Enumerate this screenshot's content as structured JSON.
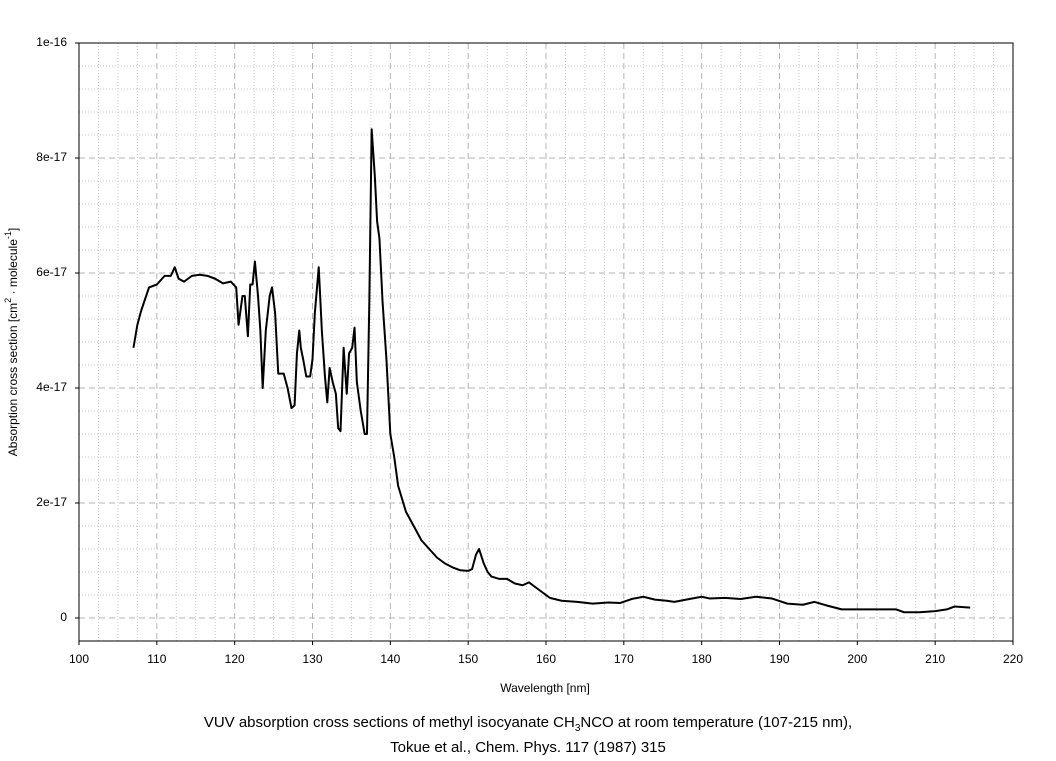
{
  "chart_data": {
    "type": "line",
    "title": [
      "VUV absorption cross sections of methyl isocyanate CH",
      "3",
      "NCO at room temperature (107-215 nm),"
    ],
    "subtitle": "Tokue et al., Chem. Phys. 117 (1987) 315",
    "xlabel": "Wavelength [nm]",
    "ylabel": [
      "Absorption cross section [cm",
      "2",
      " · molecule",
      "-1",
      "]"
    ],
    "xlim": [
      100,
      220
    ],
    "xticks": [
      100,
      110,
      120,
      130,
      140,
      150,
      160,
      170,
      180,
      190,
      200,
      210,
      220
    ],
    "ylim": [
      -4e-18,
      1e-16
    ],
    "yticks": [
      0,
      2e-17,
      4e-17,
      6e-17,
      8e-17,
      1e-16
    ],
    "grid": true,
    "color": "#000000",
    "x": [
      107,
      107.5,
      108,
      108.5,
      109,
      110,
      111,
      111.8,
      112.3,
      112.8,
      113.5,
      114.5,
      115.5,
      116.5,
      117.5,
      118.5,
      119.5,
      120.2,
      120.5,
      121,
      121.3,
      121.7,
      122,
      122.3,
      122.6,
      123,
      123.3,
      123.6,
      124,
      124.5,
      124.8,
      125.2,
      125.6,
      126.3,
      126.8,
      127.3,
      127.7,
      128,
      128.3,
      128.5,
      128.8,
      129.2,
      129.7,
      130,
      130.3,
      130.8,
      131.2,
      131.6,
      131.9,
      132.2,
      132.6,
      133,
      133.3,
      133.6,
      134,
      134.4,
      134.7,
      135.1,
      135.4,
      135.7,
      136.2,
      136.7,
      137,
      137.3,
      137.6,
      138,
      138.3,
      138.6,
      139,
      139.5,
      140,
      140.5,
      141,
      142,
      143,
      144,
      145,
      146,
      147,
      148,
      149,
      150,
      150.5,
      151,
      151.4,
      152,
      152.5,
      153,
      154,
      155,
      156,
      157,
      157.8,
      158.5,
      159.5,
      160.5,
      162,
      164,
      166,
      168,
      169.5,
      171,
      172.5,
      174,
      175.5,
      176.5,
      178,
      180,
      181,
      183,
      185,
      187,
      189,
      191,
      193,
      194.5,
      196,
      198,
      200,
      203,
      205,
      206,
      208,
      210,
      211.5,
      212.5,
      214.5
    ],
    "values": [
      4.7e-17,
      5.1e-17,
      5.35e-17,
      5.55e-17,
      5.75e-17,
      5.8e-17,
      5.95e-17,
      5.95e-17,
      6.1e-17,
      5.9e-17,
      5.85e-17,
      5.95e-17,
      5.97e-17,
      5.95e-17,
      5.9e-17,
      5.82e-17,
      5.85e-17,
      5.75e-17,
      5.1e-17,
      5.6e-17,
      5.6e-17,
      4.9e-17,
      5.8e-17,
      5.8e-17,
      6.2e-17,
      5.6e-17,
      5e-17,
      4e-17,
      5e-17,
      5.6e-17,
      5.75e-17,
      5.3e-17,
      4.25e-17,
      4.25e-17,
      4e-17,
      3.65e-17,
      3.7e-17,
      4.6e-17,
      5e-17,
      4.7e-17,
      4.5e-17,
      4.2e-17,
      4.2e-17,
      4.5e-17,
      5.3e-17,
      6.1e-17,
      5e-17,
      4.2e-17,
      3.75e-17,
      4.35e-17,
      4.1e-17,
      3.9e-17,
      3.3e-17,
      3.25e-17,
      4.7e-17,
      3.9e-17,
      4.6e-17,
      4.7e-17,
      5.05e-17,
      4.1e-17,
      3.6e-17,
      3.2e-17,
      3.2e-17,
      5.5e-17,
      8.5e-17,
      7.7e-17,
      6.9e-17,
      6.6e-17,
      5.5e-17,
      4.5e-17,
      3.2e-17,
      2.8e-17,
      2.3e-17,
      1.85e-17,
      1.6e-17,
      1.35e-17,
      1.2e-17,
      1.05e-17,
      9.5e-18,
      8.8e-18,
      8.3e-18,
      8.2e-18,
      8.5e-18,
      1.1e-17,
      1.2e-17,
      9.5e-18,
      8e-18,
      7.2e-18,
      6.8e-18,
      6.8e-18,
      6e-18,
      5.7e-18,
      6.2e-18,
      5.5e-18,
      4.5e-18,
      3.5e-18,
      3e-18,
      2.8e-18,
      2.5e-18,
      2.7e-18,
      2.6e-18,
      3.3e-18,
      3.7e-18,
      3.2e-18,
      3e-18,
      2.8e-18,
      3.2e-18,
      3.7e-18,
      3.4e-18,
      3.5e-18,
      3.3e-18,
      3.7e-18,
      3.4e-18,
      2.5e-18,
      2.3e-18,
      2.8e-18,
      2.2e-18,
      1.5e-18,
      1.5e-18,
      1.5e-18,
      1.5e-18,
      1e-18,
      1e-18,
      1.2e-18,
      1.5e-18,
      2e-18,
      1.8e-18
    ]
  }
}
